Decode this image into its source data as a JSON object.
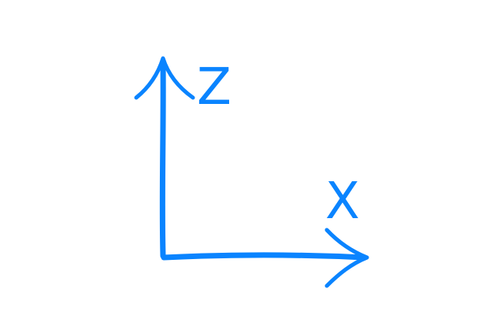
{
  "axes": {
    "vertical_label": "Z",
    "horizontal_label": "X"
  },
  "colors": {
    "axis": "#0a84ff",
    "background": "#ffffff"
  }
}
